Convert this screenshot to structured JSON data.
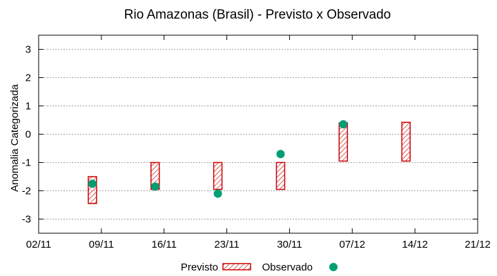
{
  "colors": {
    "forecast_stroke": "#cc0000",
    "observed_fill": "#009e73",
    "grid": "#a0a0a0",
    "axis": "#000000"
  },
  "chart_data": {
    "type": "scatter",
    "title": "Rio Amazonas (Brasil) - Previsto x Observado",
    "xlabel": "",
    "ylabel": "Anomalia Categorizada",
    "ylim": [
      -3.5,
      3.5
    ],
    "yticks": [
      -3,
      -2,
      -1,
      0,
      1,
      2,
      3
    ],
    "xlim_days": [
      0,
      49
    ],
    "xtick_days": [
      0,
      7,
      14,
      21,
      28,
      35,
      42,
      49
    ],
    "xtick_labels": [
      "02/11",
      "09/11",
      "16/11",
      "23/11",
      "30/11",
      "07/12",
      "14/12",
      "21/12"
    ],
    "grid": true,
    "legend": {
      "position": "bottom",
      "forecast_label": "Previsto",
      "observed_label": "Observado"
    },
    "forecast": [
      {
        "day": 6,
        "low": -2.45,
        "high": -1.5
      },
      {
        "day": 13,
        "low": -1.95,
        "high": -1.0
      },
      {
        "day": 20,
        "low": -1.95,
        "high": -1.0
      },
      {
        "day": 27,
        "low": -1.95,
        "high": -1.0
      },
      {
        "day": 34,
        "low": -0.95,
        "high": 0.4
      },
      {
        "day": 41,
        "low": -0.95,
        "high": 0.42
      }
    ],
    "observed": [
      {
        "day": 6,
        "value": -1.75
      },
      {
        "day": 13,
        "value": -1.85
      },
      {
        "day": 20,
        "value": -2.1
      },
      {
        "day": 27,
        "value": -0.7
      },
      {
        "day": 34,
        "value": 0.35
      }
    ]
  }
}
